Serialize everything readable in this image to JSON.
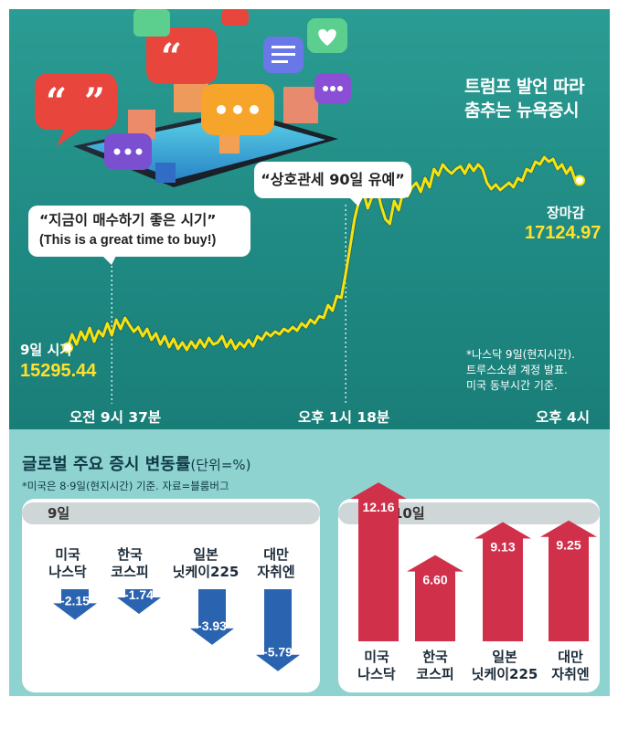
{
  "headline": {
    "line1": "트럼프 발언 따라",
    "line2": "춤추는 뉴욕증시"
  },
  "callouts": {
    "buy": {
      "line1": "“지금이 매수하기 좋은 시기”",
      "line2": "(This is a great time to buy!)"
    },
    "tariff": {
      "text": "“상호관세 90일 유예”"
    }
  },
  "open_label": {
    "title": "9일 시가",
    "value": "15295.44"
  },
  "close_label": {
    "title": "장마감",
    "value": "17124.97"
  },
  "note": {
    "line1": "*나스닥 9일(현지시간).",
    "line2": "트루스소셜 계정 발표.",
    "line3": "미국 동부시간 기준."
  },
  "time_axis": {
    "t1": "오전 9시 37분",
    "t2": "오후 1시 18분",
    "t3": "오후 4시"
  },
  "section2": {
    "title": "글로벌 주요 증시 변동률",
    "unit": "(단위=%)",
    "source": "*미국은 8·9일(현지시간) 기준. 자료=블룸버그",
    "day9": "9일",
    "day10": "10일"
  },
  "colors": {
    "line": "#f6e20f",
    "teal": "#1f8a83",
    "down": "#2a63b0",
    "up": "#d0304a"
  },
  "chart_data": [
    {
      "type": "line",
      "title": "트럼프 발언 따라 춤추는 뉴욕증시",
      "series": [
        {
          "values": [
            15295.44,
            15440,
            15330,
            15470,
            15380,
            15510,
            15360,
            15480,
            15420,
            15560,
            15430,
            15600,
            15500,
            15620,
            15540,
            15470,
            15520,
            15420,
            15500,
            15380,
            15450,
            15330,
            15420,
            15300,
            15390,
            15280,
            15350,
            15270,
            15360,
            15290,
            15380,
            15300,
            15400,
            15330,
            15350,
            15420,
            15300,
            15380,
            15280,
            15350,
            15300,
            15380,
            15310,
            15420,
            15380,
            15460,
            15420,
            15470,
            15440,
            15500,
            15470,
            15520,
            15480,
            15560,
            15520,
            15600,
            15560,
            15640,
            15620,
            15760,
            15700,
            15860,
            15840,
            16100,
            16400,
            16700,
            16900,
            17000,
            16820,
            16950,
            17050,
            16850,
            16700,
            16650,
            16900,
            16800,
            17000,
            16950,
            17050,
            17100,
            17000,
            17150,
            17050,
            17250,
            17180,
            17300,
            17240,
            17200,
            17250,
            17280,
            17200,
            17300,
            17230,
            17300,
            17250,
            17100,
            17030,
            17080,
            17020,
            17060,
            17100,
            17050,
            17150,
            17120,
            17250,
            17220,
            17330,
            17300,
            17380,
            17330,
            17360,
            17250,
            17300,
            17200,
            17270,
            17124.97,
            17124.97
          ]
        }
      ],
      "annotations": [
        {
          "time": "오전 9시 37분",
          "text": "“지금이 매수하기 좋은 시기”"
        },
        {
          "time": "오후 1시 18분",
          "text": "“상호관세 90일 유예”"
        }
      ],
      "grid": false
    },
    {
      "type": "bar",
      "title": "9일",
      "categories": [
        [
          "미국",
          "나스닥"
        ],
        [
          "한국",
          "코스피"
        ],
        [
          "일본",
          "닛케이225"
        ],
        [
          "대만",
          "자취엔"
        ]
      ],
      "values": [
        -2.15,
        -1.74,
        -3.93,
        -5.79
      ],
      "labels": [
        "-2.15",
        "-1.74",
        "-3.93",
        "-5.79"
      ]
    },
    {
      "type": "bar",
      "title": "10일",
      "categories": [
        [
          "미국",
          "나스닥"
        ],
        [
          "한국",
          "코스피"
        ],
        [
          "일본",
          "닛케이225"
        ],
        [
          "대만",
          "자취엔"
        ]
      ],
      "values": [
        12.16,
        6.6,
        9.13,
        9.25
      ],
      "labels": [
        "12.16",
        "6.60",
        "9.13",
        "9.25"
      ]
    }
  ]
}
